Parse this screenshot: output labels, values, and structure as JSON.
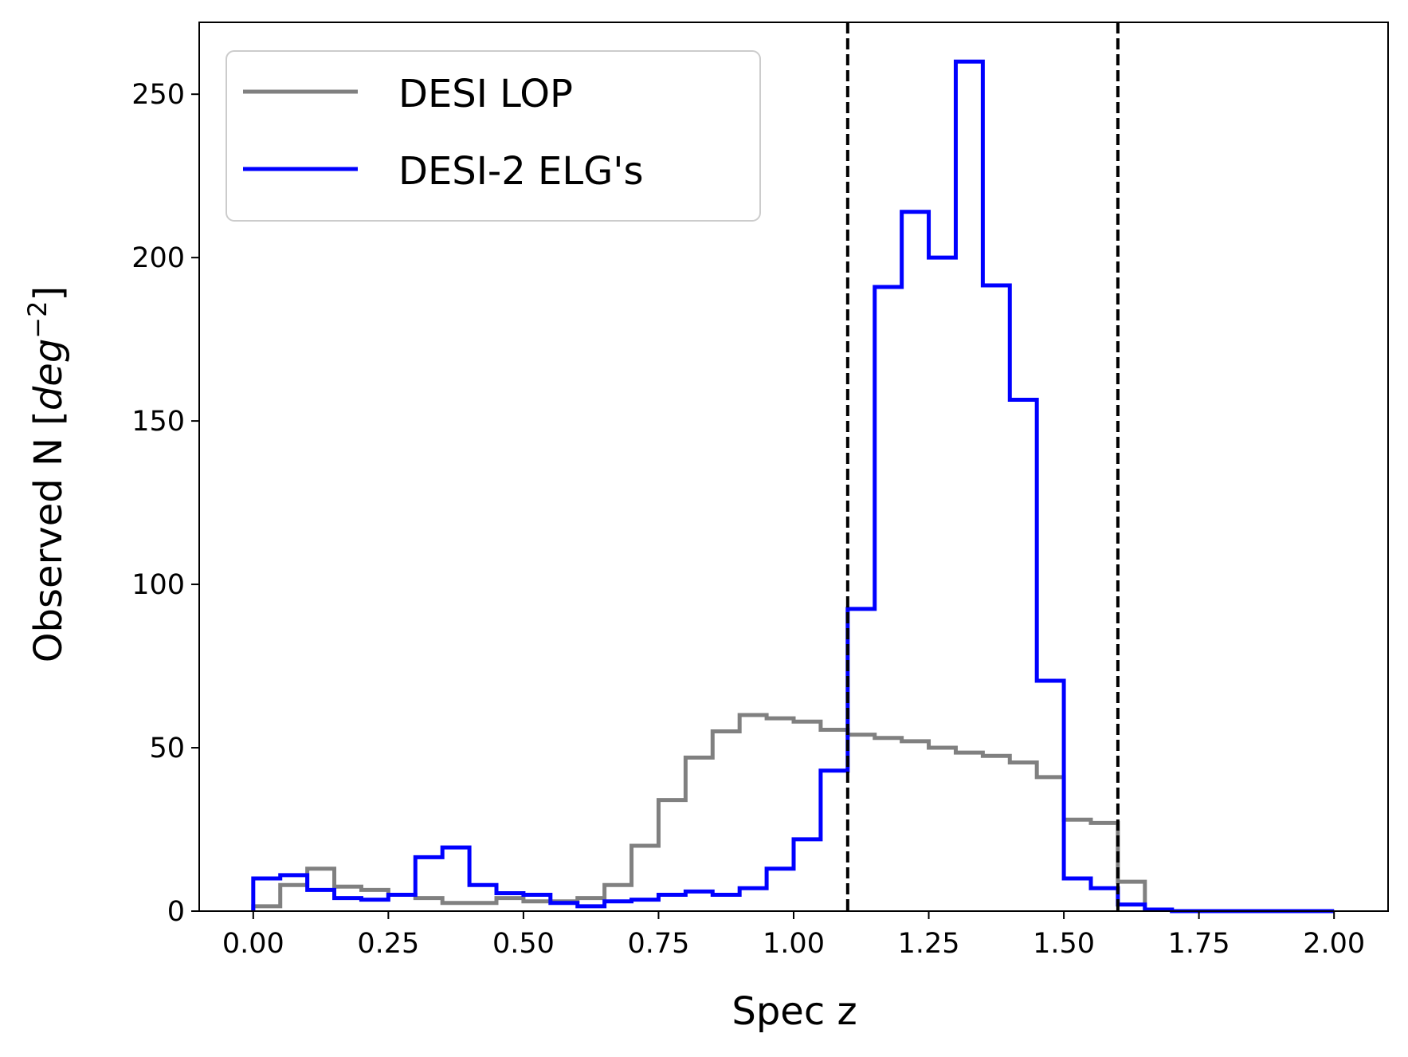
{
  "chart_data": {
    "type": "histogram-step",
    "xlabel": "Spec z",
    "ylabel_prefix": "Observed N [",
    "ylabel_unit": "deg",
    "ylabel_exp": "−2",
    "ylabel_suffix": "]",
    "xlim": [
      -0.1,
      2.1
    ],
    "ylim": [
      0,
      272
    ],
    "xticks": [
      0.0,
      0.25,
      0.5,
      0.75,
      1.0,
      1.25,
      1.5,
      1.75,
      2.0
    ],
    "xtick_labels": [
      "0.00",
      "0.25",
      "0.50",
      "0.75",
      "1.00",
      "1.25",
      "1.50",
      "1.75",
      "2.00"
    ],
    "yticks": [
      0,
      50,
      100,
      150,
      200,
      250
    ],
    "ytick_labels": [
      "0",
      "50",
      "100",
      "150",
      "200",
      "250"
    ],
    "bin_edges": [
      0.0,
      0.05,
      0.1,
      0.15,
      0.2,
      0.25,
      0.3,
      0.35,
      0.4,
      0.45,
      0.5,
      0.55,
      0.6,
      0.65,
      0.7,
      0.75,
      0.8,
      0.85,
      0.9,
      0.95,
      1.0,
      1.05,
      1.1,
      1.15,
      1.2,
      1.25,
      1.3,
      1.35,
      1.4,
      1.45,
      1.5,
      1.55,
      1.6,
      1.65,
      1.7,
      1.75,
      1.8,
      1.85,
      1.9,
      1.95,
      2.0
    ],
    "series": [
      {
        "name": "DESI LOP",
        "color": "#808080",
        "values": [
          1.5,
          8,
          13,
          7.5,
          6.5,
          5,
          4,
          2.5,
          2.5,
          4,
          3,
          3,
          4,
          8,
          20,
          34,
          47,
          55,
          60,
          59,
          58,
          55.5,
          54,
          53,
          52,
          50,
          48.5,
          47.5,
          45.5,
          41,
          28,
          27,
          9,
          0.5,
          0,
          0,
          0,
          0,
          0,
          0
        ]
      },
      {
        "name": "DESI-2 ELG's",
        "color": "#0000ff",
        "values": [
          10,
          11,
          6.5,
          4,
          3.5,
          5,
          16.5,
          19.5,
          8,
          5.5,
          5,
          2.5,
          1.5,
          3,
          3.5,
          5,
          6,
          5,
          7,
          13,
          22,
          43,
          92.5,
          191,
          214,
          200,
          260,
          191.5,
          156.5,
          70.5,
          10,
          7,
          2,
          0.5,
          0,
          0,
          0,
          0,
          0,
          0
        ]
      }
    ],
    "vlines": [
      1.1,
      1.6
    ],
    "vline_color": "#000000",
    "legend_placement": "upper-left"
  }
}
